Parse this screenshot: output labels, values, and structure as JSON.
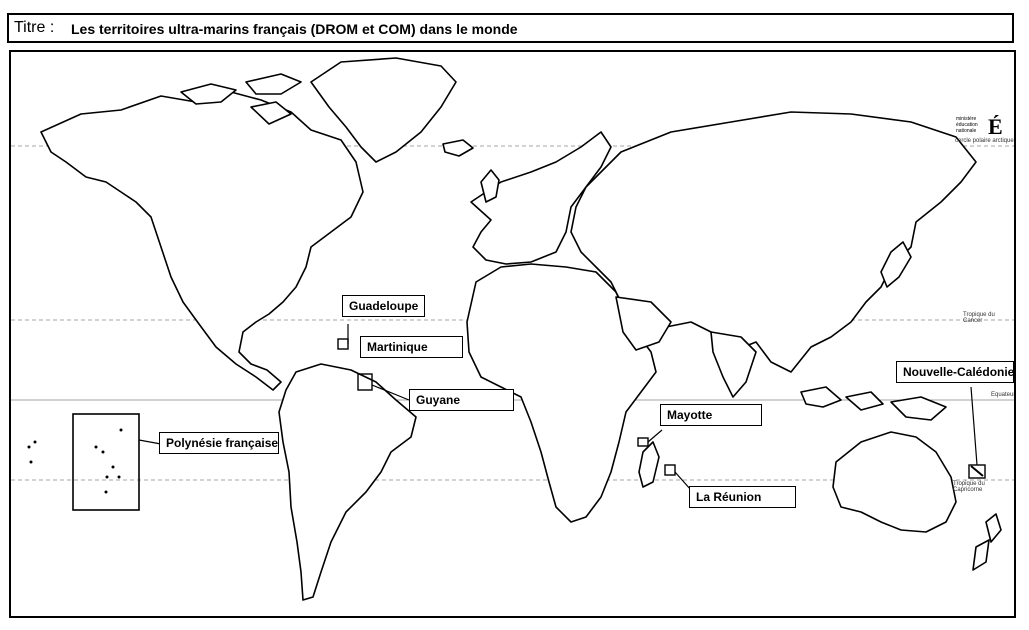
{
  "title": {
    "label": "Titre :",
    "text": "Les territoires ultra-marins français (DROM et COM) dans le monde"
  },
  "logo": {
    "text_lines": [
      "ministère",
      "éducation",
      "nationale"
    ],
    "mark": "É"
  },
  "reference_lines": {
    "arctic": "cercle polaire arctique",
    "cancer": "Tropique du Cancer",
    "equator": "Equateur",
    "capricorn": "Tropique du Capricorne"
  },
  "territories": {
    "guadeloupe": "Guadeloupe",
    "martinique": "Martinique",
    "guyane": "Guyane",
    "polynesie": "Polynésie française",
    "mayotte": "Mayotte",
    "reunion": "La Réunion",
    "nouvelle_caledonie": "Nouvelle-Calédonie"
  },
  "colors": {
    "land_fill": "#ffffff",
    "outline": "#000000",
    "reference_line": "#888888"
  }
}
